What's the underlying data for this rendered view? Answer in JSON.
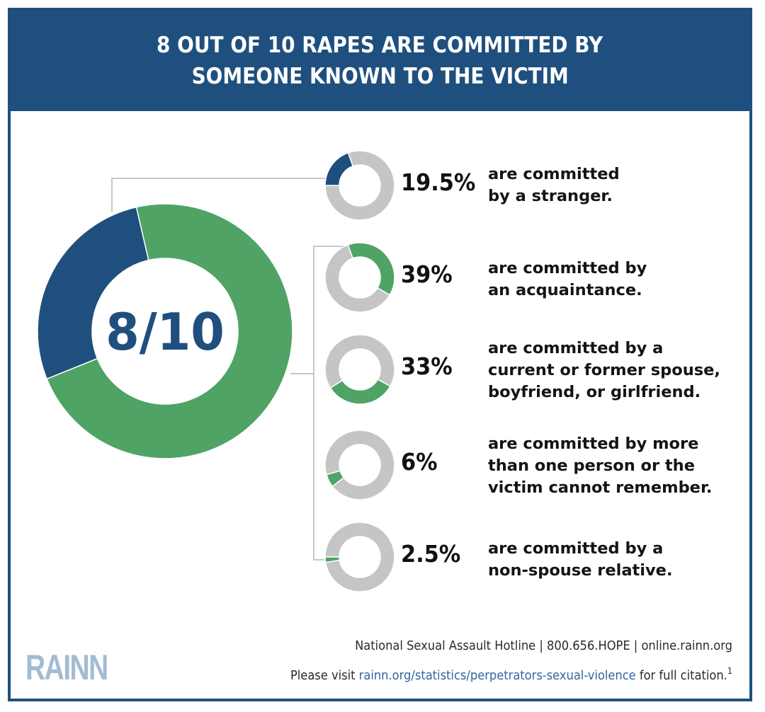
{
  "header": {
    "title_line1": "8 OUT OF 10 RAPES ARE COMMITTED BY",
    "title_line2": "SOMEONE KNOWN TO THE VICTIM"
  },
  "colors": {
    "brand_blue": "#1f4f7e",
    "green": "#4fa364",
    "gray": "#c5c5c5",
    "logo_blue": "#a3bcd3",
    "link_blue": "#2f67a0"
  },
  "main": {
    "center_label": "8/10"
  },
  "chart_data": [
    {
      "type": "pie",
      "title": "8 OUT OF 10 RAPES ARE COMMITTED BY SOMEONE KNOWN TO THE VICTIM",
      "center_label": "8/10",
      "slices": [
        {
          "name": "Stranger",
          "value": 19.5,
          "color": "#1f4f7e"
        },
        {
          "name": "Someone known to the victim",
          "value": 80.5,
          "color": "#4fa364"
        }
      ]
    },
    {
      "type": "pie",
      "title": "Breakdown of perpetrators",
      "items": [
        {
          "value": 19.5,
          "label": "19.5%",
          "desc": [
            "are committed",
            "by a stranger."
          ],
          "color": "#1f4f7e"
        },
        {
          "value": 39,
          "label": "39%",
          "desc": [
            "are committed by",
            "an acquaintance."
          ],
          "color": "#4fa364"
        },
        {
          "value": 33,
          "label": "33%",
          "desc": [
            "are committed by a",
            "current or former spouse,",
            "boyfriend, or girlfriend."
          ],
          "color": "#4fa364"
        },
        {
          "value": 6,
          "label": "6%",
          "desc": [
            "are committed by more",
            "than one person or the",
            "victim cannot remember."
          ],
          "color": "#4fa364"
        },
        {
          "value": 2.5,
          "label": "2.5%",
          "desc": [
            "are committed by a",
            "non-spouse relative."
          ],
          "color": "#4fa364"
        }
      ]
    }
  ],
  "footer": {
    "logo": "RAINN",
    "hotline_line": "National Sexual Assault Hotline | 800.656.HOPE | online.rainn.org",
    "citation_prefix": "Please visit ",
    "citation_link": "rainn.org/statistics/perpetrators-sexual-violence",
    "citation_suffix": " for full citation.",
    "citation_sup": "1"
  }
}
